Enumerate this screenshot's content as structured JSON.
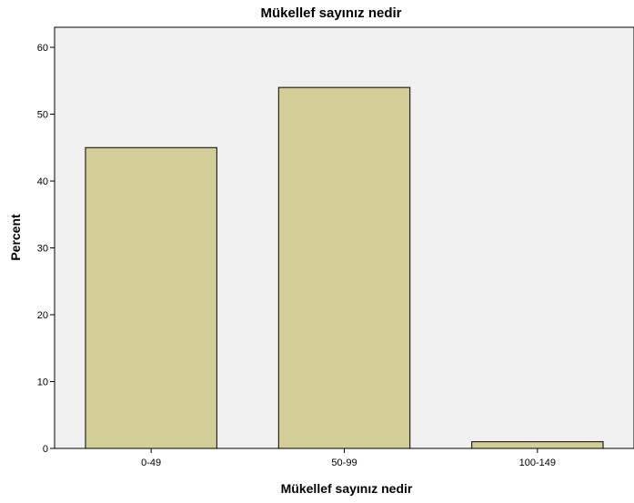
{
  "chart_data": {
    "type": "bar",
    "title": "Mükellef sayınız nedir",
    "xlabel": "Mükellef sayınız nedir",
    "ylabel": "Percent",
    "categories": [
      "0-49",
      "50-99",
      "100-149"
    ],
    "values": [
      45,
      54,
      1
    ],
    "ylim": [
      0,
      63
    ],
    "yticks": [
      0,
      10,
      20,
      30,
      40,
      50,
      60
    ],
    "grid": false,
    "legend": "none",
    "colors": {
      "plot_background": "#f0f0f0",
      "bar_fill": "#d3ce97",
      "bar_stroke": "#000000"
    }
  }
}
